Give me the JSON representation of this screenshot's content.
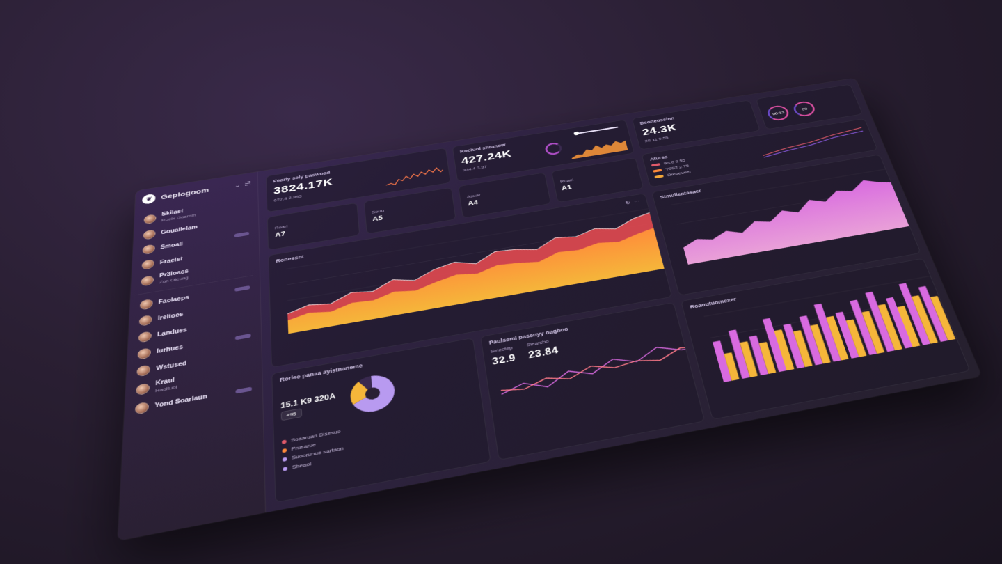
{
  "app": {
    "brand": "Geplogoom"
  },
  "sidebar": {
    "contacts": [
      {
        "name": "Skilast",
        "sub": "Roelx Goamm"
      },
      {
        "name": "Gouallelam",
        "sub": ""
      },
      {
        "name": "Smoall",
        "sub": ""
      },
      {
        "name": "Fraelst",
        "sub": ""
      },
      {
        "name": "Pr3ioacs",
        "sub": "Zon Oleung"
      },
      {
        "name": "Faolaeps",
        "sub": ""
      },
      {
        "name": "Ireltoes",
        "sub": ""
      },
      {
        "name": "Landues",
        "sub": ""
      },
      {
        "name": "Iurhues",
        "sub": ""
      },
      {
        "name": "Wstused",
        "sub": ""
      },
      {
        "name": "Kraul",
        "sub": "Haoltuol"
      },
      {
        "name": "Yond Soarlaun",
        "sub": ""
      }
    ]
  },
  "kpis": [
    {
      "title": "Fearly sely paswoad",
      "value": "3824.17K",
      "sub": "627.4 2.893"
    },
    {
      "title": "Rociuol shranow",
      "value": "427.24K",
      "sub": "334.4 3.97"
    }
  ],
  "small_cards": [
    {
      "label": "Roarl",
      "value": "A7"
    },
    {
      "label": "Souu",
      "value": "A5"
    },
    {
      "label": "Asuar",
      "value": "A4"
    },
    {
      "label": "Ruael",
      "value": "A1"
    }
  ],
  "right_top": {
    "stat_title": "Dsoneussinn",
    "stat_value": "24.3K",
    "stat_sub": "2S.11 9.55",
    "gauges": [
      "00:13",
      "09"
    ],
    "legend_title": "Aturss",
    "legend": [
      {
        "label": "9S.0 9.55",
        "color": "#e05a6a"
      },
      {
        "label": "Y0S2 2.75",
        "color": "#ff8a3a"
      },
      {
        "label": "Oreoeueer",
        "color": "#f5a93a"
      }
    ]
  },
  "big_chart": {
    "title": "Ronessnt",
    "icons": [
      "refresh-icon",
      "more-icon"
    ]
  },
  "area_chart": {
    "title": "Stmullentasaer"
  },
  "bottom_left": {
    "panel_title": "Rorlee panaa ayistnaneme",
    "panel_value": "15.1 K9 320A",
    "panel_badge": "+95",
    "rows": [
      "Soaaruan Dlsesuo",
      "Prusarue",
      "Suoorunue sartaon"
    ],
    "donut_legend": "Sheaol",
    "kpi_title": "Paulssml pasenyy oaghoo",
    "kpi_value_a": "32.9",
    "kpi_value_b": "23.84",
    "kpi_sub_a": "Selectep",
    "kpi_sub_b": "Slearcbo"
  },
  "bar_chart_title": "Roaoutuomexer",
  "colors": {
    "accent": "#b04fc8",
    "orange": "#ff8a3a",
    "red": "#d9484f",
    "pink": "#d86ae0",
    "yellow": "#f5b63a"
  },
  "chart_data": [
    {
      "type": "area",
      "series": [
        {
          "values": [
            30,
            38,
            34,
            46,
            42,
            55,
            48,
            60,
            66,
            58,
            72,
            70,
            64,
            78,
            74,
            82,
            76,
            88,
            94,
            86,
            98
          ]
        },
        {
          "values": [
            20,
            26,
            22,
            30,
            28,
            36,
            32,
            40,
            46,
            42,
            50,
            48,
            44,
            54,
            52,
            58,
            54,
            62,
            68,
            62,
            72
          ]
        }
      ],
      "ylim": [
        0,
        100
      ]
    },
    {
      "type": "area",
      "series": [
        {
          "values": [
            22,
            30,
            26,
            34,
            28,
            40,
            36,
            48,
            42,
            56,
            50,
            62,
            58,
            70,
            64,
            60,
            72
          ]
        }
      ],
      "ylim": [
        0,
        80
      ]
    },
    {
      "type": "bar",
      "series": [
        {
          "values": [
            60,
            72,
            58,
            80,
            66,
            74,
            88,
            70,
            84,
            92,
            78,
            96,
            86,
            90
          ]
        },
        {
          "values": [
            40,
            52,
            46,
            60,
            54,
            58,
            66,
            56,
            64,
            70,
            62,
            74,
            68,
            72
          ]
        }
      ],
      "ylim": [
        0,
        100
      ]
    },
    {
      "type": "pie",
      "values": [
        68,
        22,
        10
      ]
    },
    {
      "type": "line",
      "series": [
        {
          "values": [
            20,
            34,
            18,
            42,
            28,
            50,
            36,
            58,
            44,
            40
          ]
        },
        {
          "values": [
            28,
            22,
            36,
            26,
            44,
            32,
            38,
            30,
            48,
            42
          ]
        }
      ],
      "ylim": [
        0,
        70
      ]
    }
  ]
}
